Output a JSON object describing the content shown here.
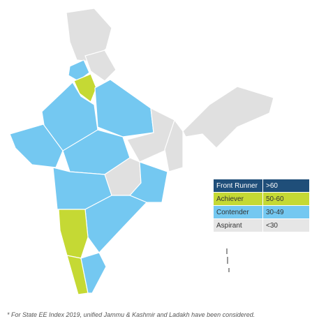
{
  "legend": [
    {
      "category": "Front Runner",
      "range": ">60",
      "color": "#1f4e79",
      "text_color": "#ffffff"
    },
    {
      "category": "Achiever",
      "range": "50-60",
      "color": "#c5d934",
      "text_color": "#333333"
    },
    {
      "category": "Contender",
      "range": "30-49",
      "color": "#74c8f1",
      "text_color": "#333333"
    },
    {
      "category": "Aspirant",
      "range": "<30",
      "color": "#e6e6e6",
      "text_color": "#333333"
    }
  ],
  "footnote": "* For State EE Index 2019, unified Jammu & Kashmir and Ladakh have been considered."
}
